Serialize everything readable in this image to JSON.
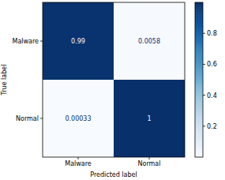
{
  "chart_data": {
    "type": "heatmap",
    "x_label": "Predicted label",
    "y_label": "True label",
    "x_categories": [
      "Malware",
      "Normal"
    ],
    "y_categories": [
      "Malware",
      "Normal"
    ],
    "cells": [
      [
        0.99,
        0.0058
      ],
      [
        0.00033,
        1
      ]
    ],
    "data_labels": true,
    "color_range": [
      0.00033,
      1
    ],
    "color_ticks": [
      0.2,
      0.4,
      0.6,
      0.8
    ]
  }
}
